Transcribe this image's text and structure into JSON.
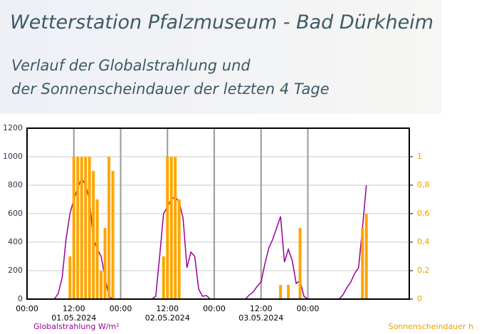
{
  "chart_data": {
    "type": "line+bar",
    "title": "Wetterstation Pfalzmuseum - Bad Dürkheim",
    "subtitle": [
      "Verlauf der Globalstrahlung und",
      "der Sonnenscheindauer der letzten 4 Tage"
    ],
    "y_label": "Globalstrahlung W/m²",
    "y2_label": "Sonnenscheindauer h",
    "x": [
      0,
      1,
      2,
      3,
      4,
      5,
      6,
      7,
      8,
      9,
      10,
      11,
      12,
      13,
      14,
      15,
      16,
      17,
      18,
      19,
      20,
      21,
      22,
      23,
      24,
      25,
      26,
      27,
      28,
      29,
      30,
      31,
      32,
      33,
      34,
      35,
      36,
      37,
      38,
      39,
      40,
      41,
      42,
      43,
      44,
      45,
      46,
      47,
      48,
      49,
      50,
      51,
      52,
      53,
      54,
      55,
      56,
      57,
      58,
      59,
      60,
      61,
      62,
      63,
      64,
      65,
      66,
      67,
      68,
      69,
      70,
      71,
      72,
      73,
      74,
      75,
      76,
      77,
      78,
      79,
      80,
      81,
      82,
      83,
      84,
      85,
      86,
      87
    ],
    "series": [
      {
        "name": "Globalstrahlung W/m²",
        "type": "line",
        "color": "#990099",
        "values": [
          0,
          0,
          0,
          0,
          0,
          0,
          0,
          0,
          40,
          150,
          420,
          600,
          700,
          780,
          850,
          800,
          700,
          420,
          350,
          300,
          150,
          20,
          0,
          0,
          0,
          0,
          0,
          0,
          0,
          0,
          0,
          0,
          0,
          20,
          300,
          600,
          650,
          700,
          720,
          680,
          570,
          220,
          330,
          300,
          70,
          20,
          25,
          0,
          0,
          0,
          0,
          0,
          0,
          0,
          0,
          0,
          0,
          30,
          50,
          90,
          120,
          250,
          360,
          420,
          500,
          580,
          260,
          350,
          270,
          110,
          130,
          20,
          0,
          0,
          0,
          0,
          0,
          0,
          0,
          0,
          0,
          30,
          80,
          120,
          180,
          220,
          500,
          800
        ]
      },
      {
        "name": "Sonnenscheindauer h",
        "type": "bar",
        "axis": "y2",
        "color": "#ffa500",
        "values": [
          0,
          0,
          0,
          0,
          0,
          0,
          0,
          0,
          0,
          0,
          0,
          0.3,
          1,
          1,
          1,
          1,
          1,
          0.9,
          0.7,
          0.2,
          0.5,
          1,
          0.9,
          0,
          0,
          0,
          0,
          0,
          0,
          0,
          0,
          0,
          0,
          0,
          0,
          0.3,
          1,
          1,
          1,
          0.7,
          0,
          0,
          0,
          0,
          0,
          0,
          0,
          0,
          0,
          0,
          0,
          0,
          0,
          0,
          0,
          0,
          0,
          0,
          0,
          0,
          0,
          0,
          0,
          0,
          0,
          0.1,
          0,
          0.1,
          0,
          0,
          0.5,
          0,
          0,
          0,
          0,
          0,
          0,
          0,
          0,
          0,
          0,
          0,
          0,
          0,
          0,
          0,
          0.5,
          0.6
        ]
      }
    ],
    "xlim": [
      0,
      98
    ],
    "xticks": [
      {
        "value": 0,
        "label": "00:00"
      },
      {
        "value": 12,
        "label": "12:00"
      },
      {
        "value": 24,
        "label": "00:00"
      },
      {
        "value": 36,
        "label": "12:00"
      },
      {
        "value": 48,
        "label": "00:00"
      },
      {
        "value": 60,
        "label": "12:00"
      },
      {
        "value": 72,
        "label": "00:00"
      }
    ],
    "xdates": [
      {
        "value": 12,
        "label": "01.05.2024"
      },
      {
        "value": 36,
        "label": "02.05.2024"
      },
      {
        "value": 60,
        "label": "03.05.2024"
      }
    ],
    "ylim": [
      0,
      1200
    ],
    "yticks": [
      0,
      200,
      400,
      600,
      800,
      1000,
      1200
    ],
    "y2lim": [
      0,
      1.2
    ],
    "y2ticks": [
      0,
      {
        "value": 0.2,
        "label": "0,2"
      },
      {
        "value": 0.4,
        "label": "0,4"
      },
      {
        "value": 0.6,
        "label": "0,6"
      },
      {
        "value": 0.8,
        "label": "0,8"
      },
      1
    ],
    "grid": true
  }
}
